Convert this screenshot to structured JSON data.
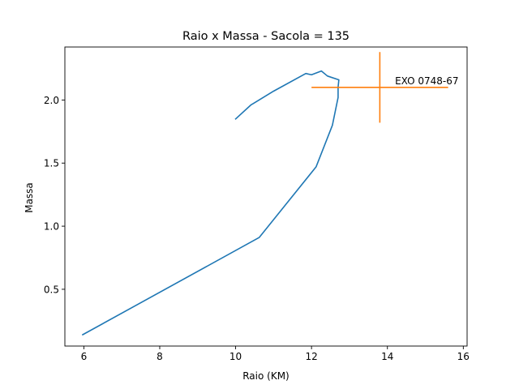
{
  "chart_data": {
    "type": "line",
    "title": "Raio x Massa - Sacola = 135",
    "xlabel": "Raio (KM)",
    "ylabel": "Massa",
    "xlim": [
      5.5,
      16.1
    ],
    "ylim": [
      0.05,
      2.42
    ],
    "xticks": [
      {
        "value": 6,
        "label": "6"
      },
      {
        "value": 8,
        "label": "8"
      },
      {
        "value": 10,
        "label": "10"
      },
      {
        "value": 12,
        "label": "12"
      },
      {
        "value": 14,
        "label": "14"
      },
      {
        "value": 16,
        "label": "16"
      }
    ],
    "yticks": [
      {
        "value": 0.5,
        "label": "0.5"
      },
      {
        "value": 1.0,
        "label": "1.0"
      },
      {
        "value": 1.5,
        "label": "1.5"
      },
      {
        "value": 2.0,
        "label": "2.0"
      }
    ],
    "grid": false,
    "series": [
      {
        "color": "#1f77b4",
        "x": [
          5.97,
          10.62,
          12.12,
          12.55,
          12.7,
          12.7,
          12.72,
          12.42,
          12.26,
          12.0,
          11.85,
          11.0,
          10.4,
          10.0
        ],
        "y": [
          0.14,
          0.91,
          1.47,
          1.8,
          2.02,
          2.1,
          2.16,
          2.19,
          2.23,
          2.2,
          2.21,
          2.07,
          1.96,
          1.85
        ]
      }
    ],
    "errorbars": [
      {
        "name": "EXO 0748-67",
        "color": "#ff7f0e",
        "x": 13.8,
        "y": 2.1,
        "xerr": 1.8,
        "yerr": 0.28
      }
    ]
  }
}
